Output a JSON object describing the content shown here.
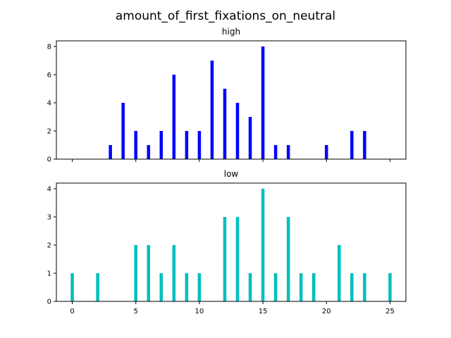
{
  "chart_data": {
    "type": "bar",
    "title": "amount_of_first_fixations_on_neutral",
    "sharex": true,
    "xlim": [
      -1.25,
      26.25
    ],
    "xticks": [
      0,
      5,
      10,
      15,
      20,
      25
    ],
    "panels": [
      {
        "name": "high",
        "title": "high",
        "color": "#0000ff",
        "ylim": [
          0,
          8.4
        ],
        "yticks": [
          0,
          2,
          4,
          6,
          8
        ],
        "x": [
          3,
          4,
          5,
          6,
          7,
          8,
          9,
          10,
          11,
          12,
          13,
          14,
          15,
          16,
          17,
          20,
          22,
          23
        ],
        "values": [
          1,
          4,
          2,
          1,
          2,
          6,
          2,
          2,
          7,
          5,
          4,
          3,
          8,
          1,
          1,
          1,
          2,
          2
        ]
      },
      {
        "name": "low",
        "title": "low",
        "color": "#00bfbf",
        "ylim": [
          0,
          4.2
        ],
        "yticks": [
          0,
          1,
          2,
          3,
          4
        ],
        "x": [
          0,
          2,
          5,
          6,
          7,
          8,
          9,
          10,
          12,
          13,
          14,
          15,
          16,
          17,
          18,
          19,
          21,
          22,
          23,
          25
        ],
        "values": [
          1,
          1,
          2,
          2,
          1,
          2,
          1,
          1,
          3,
          3,
          1,
          4,
          1,
          3,
          1,
          1,
          2,
          1,
          1,
          1
        ]
      }
    ]
  }
}
